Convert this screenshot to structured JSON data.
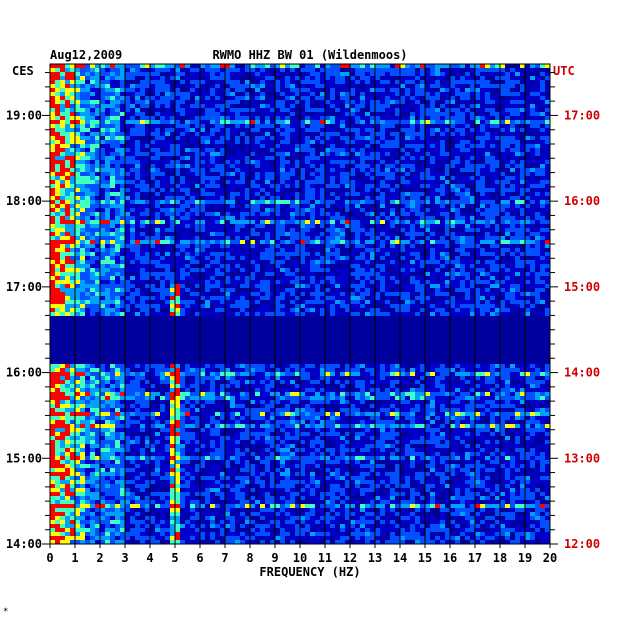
{
  "chart_data": {
    "type": "heatmap",
    "date": "Aug12,2009",
    "title": "RWMO HHZ BW 01 (Wildenmoos)",
    "left_timezone": "CES",
    "right_timezone": "UTC",
    "xlabel": "FREQUENCY (HZ)",
    "xlim": [
      0,
      20
    ],
    "x_ticks": [
      "0",
      "1",
      "2",
      "3",
      "4",
      "5",
      "6",
      "7",
      "8",
      "9",
      "10",
      "11",
      "12",
      "13",
      "14",
      "15",
      "16",
      "17",
      "18",
      "19",
      "20"
    ],
    "y_ticks_left": [
      "14:00",
      "15:00",
      "16:00",
      "17:00",
      "18:00",
      "19:00"
    ],
    "y_ticks_right": [
      "12:00",
      "13:00",
      "14:00",
      "15:00",
      "16:00",
      "17:00"
    ],
    "y_tick_hours_left": [
      14,
      15,
      16,
      17,
      18,
      19
    ],
    "ylim_hours_left": [
      14.0,
      19.6
    ],
    "grid": true,
    "data_gap_hours_left": [
      16.1,
      16.65
    ],
    "colors": {
      "background": "#00009c",
      "low": "#0000c8",
      "mid": "#00a0ff",
      "high": "#ffff00",
      "peak": "#ff0000",
      "grid": "#000000",
      "utc_text": "#d00000"
    },
    "footnote": "*"
  }
}
